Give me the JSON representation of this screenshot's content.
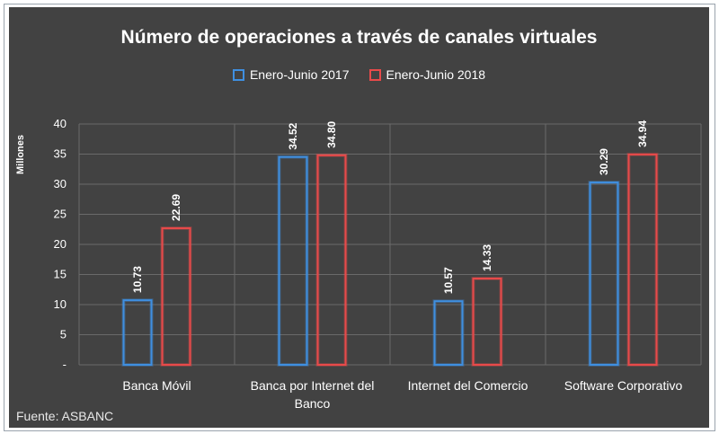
{
  "chart_data": {
    "type": "bar",
    "title": "Número de operaciones a través de canales virtuales",
    "ylabel": "Millones",
    "xlabel": "",
    "ylim": [
      0,
      40
    ],
    "yticks": [
      "-",
      "5",
      "10",
      "15",
      "20",
      "25",
      "30",
      "35",
      "40"
    ],
    "categories": [
      "Banca Móvil",
      "Banca por Internet del Banco",
      "Internet del Comercio",
      "Software Corporativo"
    ],
    "series": [
      {
        "name": "Enero-Junio 2017",
        "values": [
          10.73,
          34.52,
          10.57,
          30.29
        ],
        "labels": [
          "10.73",
          "34.52",
          "10.57",
          "30.29"
        ],
        "color": "#3f8fe0"
      },
      {
        "name": "Enero-Junio 2018",
        "values": [
          22.69,
          34.8,
          14.33,
          34.94
        ],
        "labels": [
          "22.69",
          "34.80",
          "14.33",
          "34.94"
        ],
        "color": "#e84a4a"
      }
    ],
    "legend_position": "top",
    "grid": true
  },
  "footer": {
    "source": "Fuente: ASBANC"
  },
  "colors": {
    "background": "#424242",
    "grid": "#6a6a6a",
    "text": "#ffffff"
  }
}
